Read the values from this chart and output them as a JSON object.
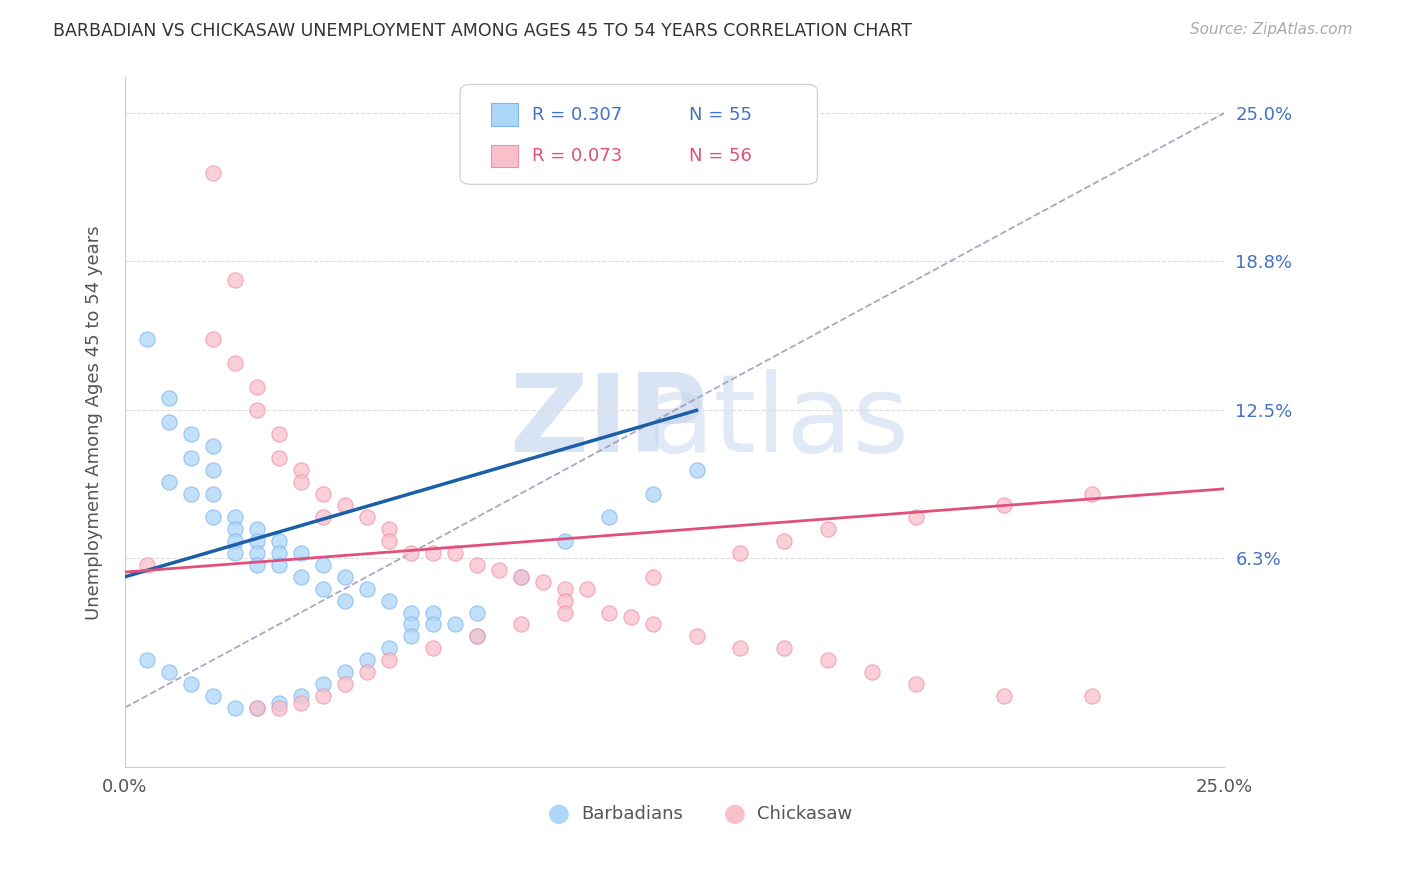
{
  "title": "BARBADIAN VS CHICKASAW UNEMPLOYMENT AMONG AGES 45 TO 54 YEARS CORRELATION CHART",
  "source": "Source: ZipAtlas.com",
  "ylabel": "Unemployment Among Ages 45 to 54 years",
  "ytick_values": [
    0.063,
    0.125,
    0.188,
    0.25
  ],
  "yticklabels": [
    "6.3%",
    "12.5%",
    "18.8%",
    "25.0%"
  ],
  "xlim": [
    0.0,
    0.25
  ],
  "ylim": [
    -0.025,
    0.265
  ],
  "blue_fill": "#AED6F8",
  "blue_edge": "#7EB6F0",
  "pink_fill": "#F9C0CC",
  "pink_edge": "#F090A8",
  "blue_line": "#1A5FA8",
  "pink_line": "#E0507A",
  "diag_color": "#9999BB",
  "grid_color": "#DDDDDD",
  "right_tick_color": "#4472C4",
  "barbadian_x": [
    0.005,
    0.01,
    0.01,
    0.01,
    0.015,
    0.015,
    0.015,
    0.02,
    0.02,
    0.02,
    0.02,
    0.025,
    0.025,
    0.025,
    0.025,
    0.03,
    0.03,
    0.03,
    0.03,
    0.035,
    0.035,
    0.035,
    0.04,
    0.04,
    0.045,
    0.045,
    0.05,
    0.05,
    0.055,
    0.06,
    0.065,
    0.065,
    0.07,
    0.075,
    0.08,
    0.005,
    0.01,
    0.015,
    0.02,
    0.025,
    0.03,
    0.035,
    0.04,
    0.045,
    0.05,
    0.055,
    0.06,
    0.065,
    0.07,
    0.08,
    0.09,
    0.1,
    0.11,
    0.12,
    0.13
  ],
  "barbadian_y": [
    0.155,
    0.13,
    0.12,
    0.095,
    0.115,
    0.105,
    0.09,
    0.11,
    0.1,
    0.09,
    0.08,
    0.08,
    0.075,
    0.07,
    0.065,
    0.075,
    0.07,
    0.065,
    0.06,
    0.07,
    0.065,
    0.06,
    0.065,
    0.055,
    0.06,
    0.05,
    0.055,
    0.045,
    0.05,
    0.045,
    0.04,
    0.035,
    0.04,
    0.035,
    0.03,
    0.02,
    0.015,
    0.01,
    0.005,
    0.0,
    0.0,
    0.002,
    0.005,
    0.01,
    0.015,
    0.02,
    0.025,
    0.03,
    0.035,
    0.04,
    0.055,
    0.07,
    0.08,
    0.09,
    0.1
  ],
  "chickasaw_x": [
    0.02,
    0.025,
    0.02,
    0.025,
    0.03,
    0.03,
    0.035,
    0.035,
    0.04,
    0.04,
    0.045,
    0.045,
    0.05,
    0.055,
    0.06,
    0.06,
    0.065,
    0.07,
    0.075,
    0.08,
    0.085,
    0.09,
    0.095,
    0.1,
    0.1,
    0.105,
    0.11,
    0.115,
    0.12,
    0.13,
    0.14,
    0.15,
    0.16,
    0.17,
    0.18,
    0.2,
    0.22,
    0.03,
    0.035,
    0.04,
    0.045,
    0.05,
    0.055,
    0.06,
    0.07,
    0.08,
    0.09,
    0.1,
    0.12,
    0.14,
    0.15,
    0.16,
    0.18,
    0.2,
    0.22,
    0.005
  ],
  "chickasaw_y": [
    0.225,
    0.18,
    0.155,
    0.145,
    0.135,
    0.125,
    0.115,
    0.105,
    0.1,
    0.095,
    0.09,
    0.08,
    0.085,
    0.08,
    0.075,
    0.07,
    0.065,
    0.065,
    0.065,
    0.06,
    0.058,
    0.055,
    0.053,
    0.05,
    0.045,
    0.05,
    0.04,
    0.038,
    0.035,
    0.03,
    0.025,
    0.025,
    0.02,
    0.015,
    0.01,
    0.005,
    0.005,
    0.0,
    0.0,
    0.002,
    0.005,
    0.01,
    0.015,
    0.02,
    0.025,
    0.03,
    0.035,
    0.04,
    0.055,
    0.065,
    0.07,
    0.075,
    0.08,
    0.085,
    0.09,
    0.06
  ],
  "blue_regr": [
    0.0,
    0.13,
    0.055,
    0.125
  ],
  "pink_regr": [
    0.0,
    0.25,
    0.057,
    0.092
  ]
}
